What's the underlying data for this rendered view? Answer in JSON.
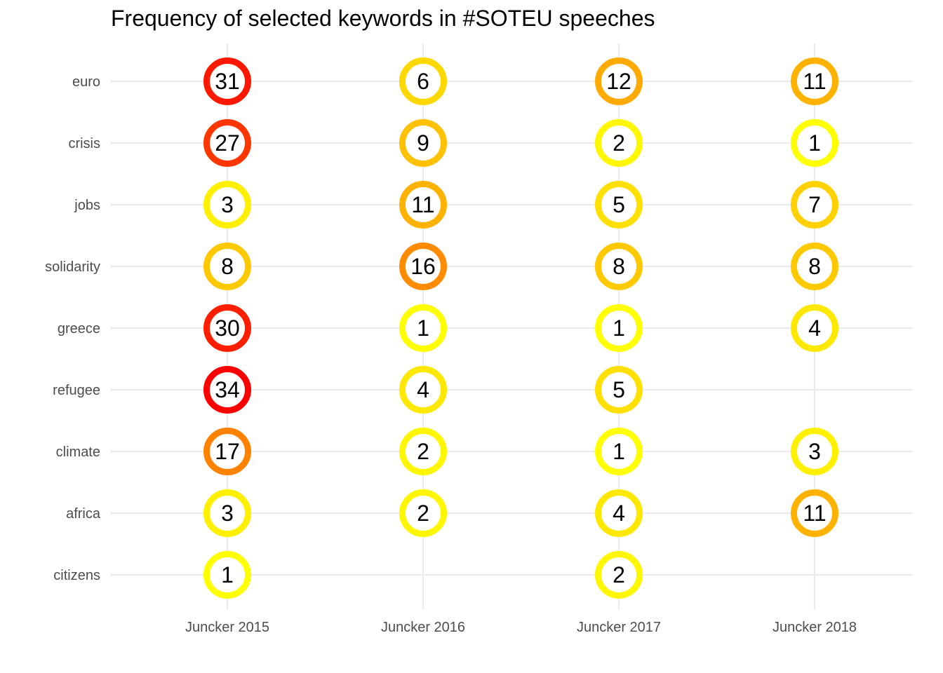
{
  "chart_data": {
    "type": "scatter",
    "title": "Frequency of selected keywords in #SOTEU speeches",
    "xlabel": "",
    "ylabel": "",
    "grid": true,
    "legend": "none",
    "categories": [
      "Juncker 2015",
      "Juncker 2016",
      "Juncker 2017",
      "Juncker 2018"
    ],
    "keywords": [
      "euro",
      "crisis",
      "jobs",
      "solidarity",
      "greece",
      "refugee",
      "climate",
      "africa",
      "citizens"
    ],
    "color_scale": {
      "low": "#FFFF00",
      "high": "#FF0000",
      "min": 1,
      "max": 34
    },
    "points": [
      {
        "speech": "Juncker 2015",
        "keyword": "euro",
        "count": 31
      },
      {
        "speech": "Juncker 2015",
        "keyword": "crisis",
        "count": 27
      },
      {
        "speech": "Juncker 2015",
        "keyword": "jobs",
        "count": 3
      },
      {
        "speech": "Juncker 2015",
        "keyword": "solidarity",
        "count": 8
      },
      {
        "speech": "Juncker 2015",
        "keyword": "greece",
        "count": 30
      },
      {
        "speech": "Juncker 2015",
        "keyword": "refugee",
        "count": 34
      },
      {
        "speech": "Juncker 2015",
        "keyword": "climate",
        "count": 17
      },
      {
        "speech": "Juncker 2015",
        "keyword": "africa",
        "count": 3
      },
      {
        "speech": "Juncker 2015",
        "keyword": "citizens",
        "count": 1
      },
      {
        "speech": "Juncker 2016",
        "keyword": "euro",
        "count": 6
      },
      {
        "speech": "Juncker 2016",
        "keyword": "crisis",
        "count": 9
      },
      {
        "speech": "Juncker 2016",
        "keyword": "jobs",
        "count": 11
      },
      {
        "speech": "Juncker 2016",
        "keyword": "solidarity",
        "count": 16
      },
      {
        "speech": "Juncker 2016",
        "keyword": "greece",
        "count": 1
      },
      {
        "speech": "Juncker 2016",
        "keyword": "refugee",
        "count": 4
      },
      {
        "speech": "Juncker 2016",
        "keyword": "climate",
        "count": 2
      },
      {
        "speech": "Juncker 2016",
        "keyword": "africa",
        "count": 2
      },
      {
        "speech": "Juncker 2017",
        "keyword": "euro",
        "count": 12
      },
      {
        "speech": "Juncker 2017",
        "keyword": "crisis",
        "count": 2
      },
      {
        "speech": "Juncker 2017",
        "keyword": "jobs",
        "count": 5
      },
      {
        "speech": "Juncker 2017",
        "keyword": "solidarity",
        "count": 8
      },
      {
        "speech": "Juncker 2017",
        "keyword": "greece",
        "count": 1
      },
      {
        "speech": "Juncker 2017",
        "keyword": "refugee",
        "count": 5
      },
      {
        "speech": "Juncker 2017",
        "keyword": "climate",
        "count": 1
      },
      {
        "speech": "Juncker 2017",
        "keyword": "africa",
        "count": 4
      },
      {
        "speech": "Juncker 2017",
        "keyword": "citizens",
        "count": 2
      },
      {
        "speech": "Juncker 2018",
        "keyword": "euro",
        "count": 11
      },
      {
        "speech": "Juncker 2018",
        "keyword": "crisis",
        "count": 1
      },
      {
        "speech": "Juncker 2018",
        "keyword": "jobs",
        "count": 7
      },
      {
        "speech": "Juncker 2018",
        "keyword": "solidarity",
        "count": 8
      },
      {
        "speech": "Juncker 2018",
        "keyword": "greece",
        "count": 4
      },
      {
        "speech": "Juncker 2018",
        "keyword": "climate",
        "count": 3
      },
      {
        "speech": "Juncker 2018",
        "keyword": "africa",
        "count": 11
      }
    ]
  }
}
